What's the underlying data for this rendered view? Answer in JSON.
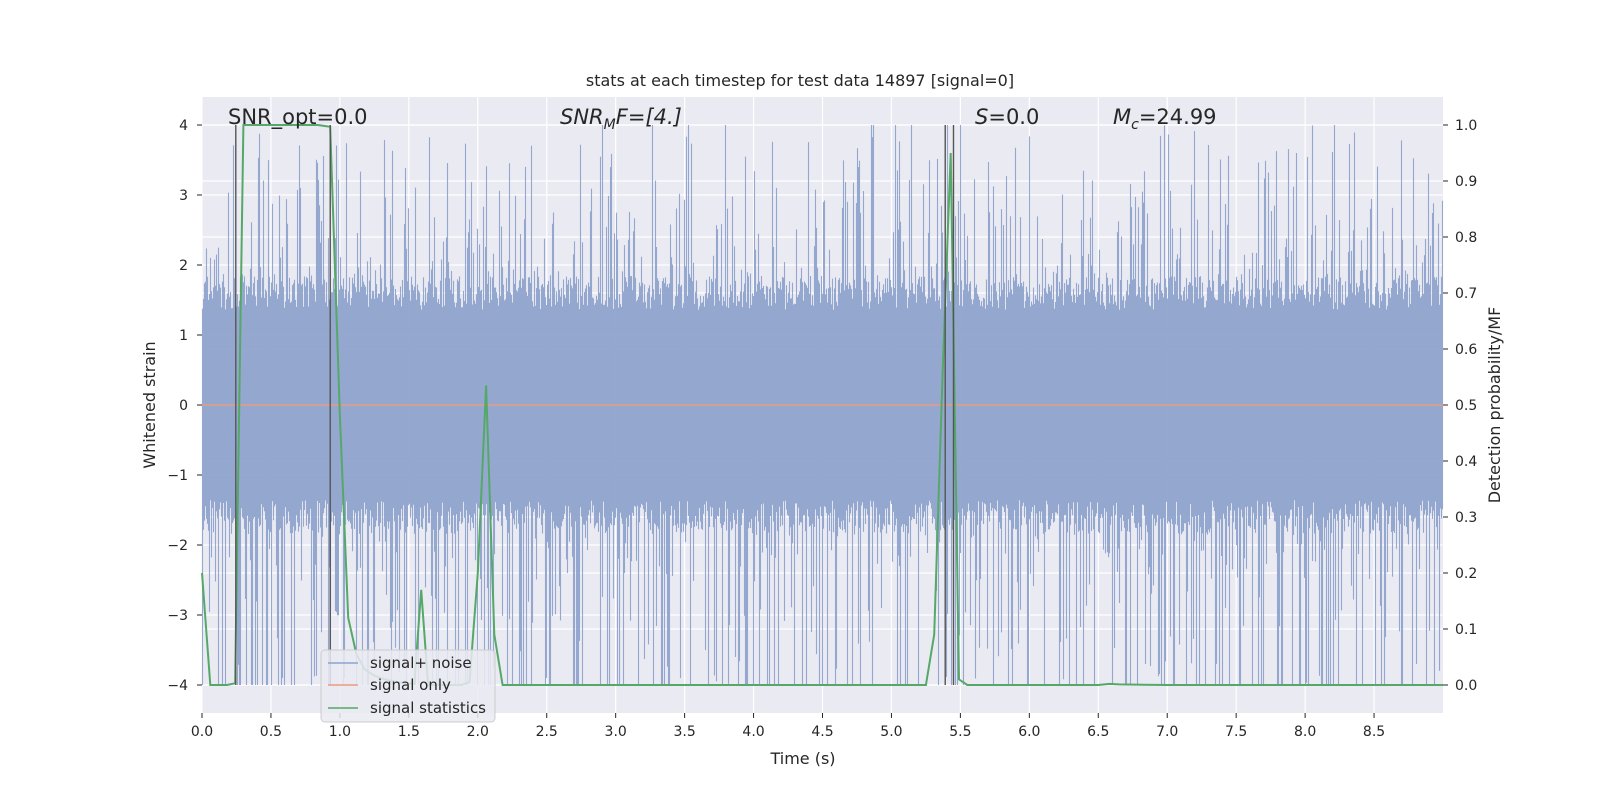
{
  "chart_data": {
    "type": "line",
    "title": "stats at each timestep for test data 14897 [signal=0]",
    "xlabel": "Time (s)",
    "ylabel": "Whitened strain",
    "y2label": "Detection probability/MF",
    "xlim": [
      0,
      9
    ],
    "ylim": [
      -4.4,
      4.4
    ],
    "y2lim": [
      -0.05,
      1.05
    ],
    "xticks": [
      "0.0",
      "0.5",
      "1.0",
      "1.5",
      "2.0",
      "2.5",
      "3.0",
      "3.5",
      "4.0",
      "4.5",
      "5.0",
      "5.5",
      "6.0",
      "6.5",
      "7.0",
      "7.5",
      "8.0",
      "8.5"
    ],
    "yticks": [
      "−4",
      "−3",
      "−2",
      "−1",
      "0",
      "1",
      "2",
      "3",
      "4"
    ],
    "y2ticks": [
      "0.0",
      "0.1",
      "0.2",
      "0.3",
      "0.4",
      "0.5",
      "0.6",
      "0.7",
      "0.8",
      "0.9",
      "1.0"
    ],
    "grid": true,
    "legend_position": "lower-left",
    "annotations": {
      "snr_opt": "SNR_opt=0.0",
      "snr_mf_base": "SNR",
      "snr_mf_sub": "M",
      "snr_mf_rest": "F=[4.]",
      "s_base": "S",
      "s_rest": "=0.0",
      "mc_base": "M",
      "mc_sub": "c",
      "mc_rest": "=24.99"
    },
    "series": [
      {
        "name": "signal+ noise",
        "color": "#8fa3cc",
        "kind": "noise",
        "sample_rate": 4096,
        "envelope_typical": 1.6,
        "envelope_peak_max": 4.0,
        "envelope_peak_min": -4.0
      },
      {
        "name": "signal only",
        "color": "#e89a80",
        "kind": "constant",
        "x": [
          0,
          9
        ],
        "y": [
          0,
          0
        ]
      },
      {
        "name": "signal statistics",
        "color": "#55a868",
        "kind": "line",
        "axis": "right",
        "x": [
          0.0,
          0.06,
          0.12,
          0.18,
          0.24,
          0.3,
          0.36,
          0.42,
          0.48,
          0.54,
          0.6,
          0.66,
          0.72,
          0.78,
          0.84,
          0.93,
          1.0,
          1.06,
          1.12,
          1.18,
          1.24,
          1.3,
          1.36,
          1.42,
          1.48,
          1.54,
          1.59,
          1.64,
          1.7,
          1.76,
          1.82,
          1.88,
          1.94,
          2.0,
          2.06,
          2.12,
          2.18,
          2.24,
          2.3,
          2.4,
          2.6,
          3.0,
          3.5,
          4.0,
          4.5,
          5.0,
          5.25,
          5.31,
          5.37,
          5.43,
          5.49,
          5.55,
          5.6,
          5.7,
          6.0,
          6.5,
          6.58,
          6.65,
          7.0,
          7.5,
          8.0,
          8.5,
          9.0
        ],
        "y": [
          0.2,
          0.0,
          0.0,
          0.0,
          0.003,
          1.0,
          1.0,
          1.0,
          1.0,
          1.0,
          1.0,
          1.0,
          1.0,
          1.0,
          1.0,
          0.997,
          0.48,
          0.12,
          0.055,
          0.028,
          0.018,
          0.012,
          0.008,
          0.005,
          0.003,
          0.002,
          0.17,
          0.0,
          0.0,
          0.0,
          0.0,
          0.0,
          0.005,
          0.2,
          0.535,
          0.09,
          0.0,
          0.0,
          0.0,
          0.0,
          0.0,
          0.0,
          0.0,
          0.0,
          0.0,
          0.0,
          0.0,
          0.09,
          0.55,
          0.95,
          0.01,
          0.0,
          0.0,
          0.0,
          0.0,
          0.0,
          0.002,
          0.001,
          0.0,
          0.0,
          0.0,
          0.0,
          0.0
        ]
      }
    ],
    "vertical_markers_x": [
      0.245,
      0.93,
      5.39,
      5.45
    ]
  }
}
